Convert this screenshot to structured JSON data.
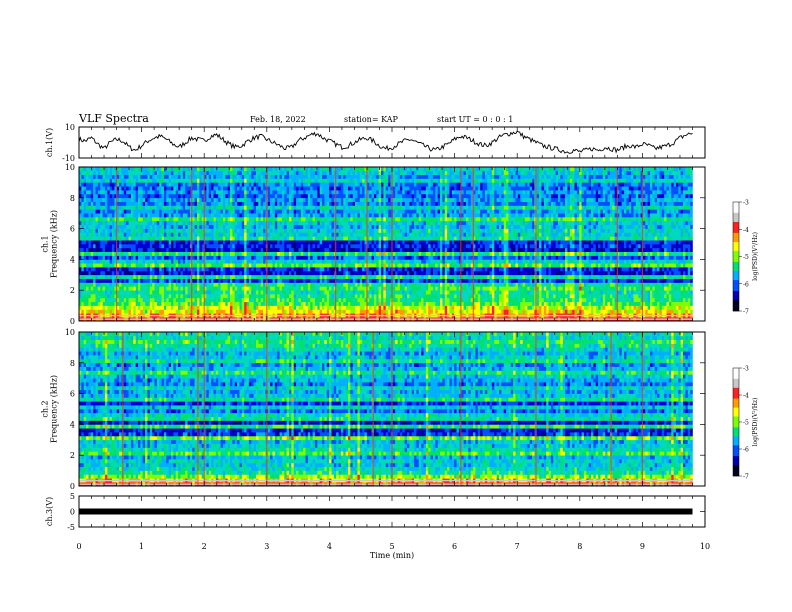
{
  "header": {
    "title": "VLF Spectra",
    "date": "Feb. 18, 2022",
    "station": "station= KAP",
    "start_ut": "start  UT =   0 : 0  : 1"
  },
  "colorbar": {
    "label": "log(PSD)(V²/Hz)",
    "ticks": [
      "-3",
      "-4",
      "-5",
      "-6",
      "-7"
    ],
    "colors": [
      "#ffffff",
      "#c8c8c8",
      "#ff2020",
      "#ff9a00",
      "#ffff00",
      "#7cff00",
      "#00e070",
      "#00b0ff",
      "#0050ff",
      "#0000b0",
      "#000020"
    ]
  },
  "chart_data": [
    {
      "panel": "ch1-voltage",
      "type": "line",
      "ylabel": "ch.1(V)",
      "ylim": [
        -10,
        10
      ],
      "yticks": [
        "10",
        "-10"
      ],
      "xlim": [
        0,
        10
      ],
      "x_step_min": 0.1,
      "values": [
        2,
        1,
        3,
        -1,
        -4,
        0,
        2,
        1,
        -3,
        -5,
        -2,
        1,
        3,
        4,
        2,
        -1,
        -3,
        0,
        3,
        2,
        1,
        4,
        5,
        2,
        -1,
        -3,
        -2,
        1,
        3,
        4,
        2,
        0,
        -2,
        -4,
        -3,
        1,
        3,
        5,
        6,
        3,
        1,
        -1,
        -3,
        -2,
        0,
        2,
        3,
        1,
        -2,
        -4,
        -3,
        -1,
        1,
        2,
        0,
        -2,
        -4,
        -5,
        -3,
        -1,
        2,
        4,
        3,
        1,
        -1,
        -2,
        0,
        3,
        5,
        6,
        7,
        4,
        2,
        0,
        -2,
        -3,
        -4,
        -5,
        -6,
        -5,
        -6,
        -5,
        -4,
        -5,
        -3,
        -4,
        -5,
        -3,
        -2,
        -3,
        -1,
        -2,
        -4,
        -3,
        -2,
        0,
        3,
        5,
        6,
        4
      ]
    },
    {
      "panel": "ch1-spectrogram",
      "type": "heatmap",
      "ylabel": "ch.1\nFrequency (kHz)",
      "ylim": [
        0,
        10
      ],
      "xlim": [
        0,
        10
      ],
      "yticks": [
        "0",
        "2",
        "4",
        "6",
        "8",
        "10"
      ],
      "band_profile_log_psd": [
        -3.2,
        -3.6,
        -4.0,
        -4.2,
        -4.6,
        -4.8,
        -4.9,
        -5.0,
        -4.7,
        -5.0,
        -6.1,
        -5.0,
        -6.4,
        -6.2,
        -4.6,
        -5.3,
        -6.0,
        -4.8,
        -6.4,
        -6.2,
        -6.3,
        -5.0,
        -5.3,
        -5.2,
        -5.5,
        -5.4,
        -4.8,
        -5.6,
        -5.7,
        -5.2,
        -5.8,
        -5.6,
        -5.9,
        -5.7,
        -5.9,
        -5.8,
        -5.2,
        -5.6,
        -5.4,
        -5.2
      ],
      "strong_lines_min": [
        0.6,
        1.8,
        2.0,
        3.0,
        4.1,
        4.6,
        5.0,
        6.1,
        6.3,
        7.3,
        8.6,
        9.0
      ]
    },
    {
      "panel": "ch2-spectrogram",
      "type": "heatmap",
      "ylabel": "ch.2\nFrequency (kHz)",
      "ylim": [
        0,
        10
      ],
      "xlim": [
        0,
        10
      ],
      "yticks": [
        "0",
        "2",
        "4",
        "6",
        "8",
        "10"
      ],
      "band_profile_log_psd": [
        -3.2,
        -3.8,
        -4.4,
        -5.0,
        -5.2,
        -5.4,
        -5.3,
        -5.5,
        -4.7,
        -5.2,
        -5.4,
        -5.5,
        -4.5,
        -6.2,
        -6.3,
        -4.8,
        -6.4,
        -5.0,
        -5.2,
        -5.9,
        -5.4,
        -6.2,
        -5.0,
        -5.5,
        -5.6,
        -5.3,
        -5.8,
        -5.6,
        -5.4,
        -4.9,
        -5.5,
        -5.7,
        -5.0,
        -5.4,
        -5.6,
        -5.3,
        -5.0,
        -4.8,
        -5.2,
        -5.0
      ],
      "strong_lines_min": [
        0.7,
        1.9,
        2.0,
        3.0,
        4.7,
        5.0,
        6.1,
        7.3,
        8.5,
        9.0
      ]
    },
    {
      "panel": "ch3-voltage",
      "type": "line",
      "ylabel": "ch.3(V)",
      "ylim": [
        -5,
        5
      ],
      "yticks": [
        "5",
        "0",
        "-5"
      ],
      "xlim": [
        0,
        10
      ],
      "constant_value": 0
    }
  ],
  "xaxis": {
    "label": "Time (min)",
    "ticks": [
      "0",
      "1",
      "2",
      "3",
      "4",
      "5",
      "6",
      "7",
      "8",
      "9",
      "10"
    ]
  }
}
